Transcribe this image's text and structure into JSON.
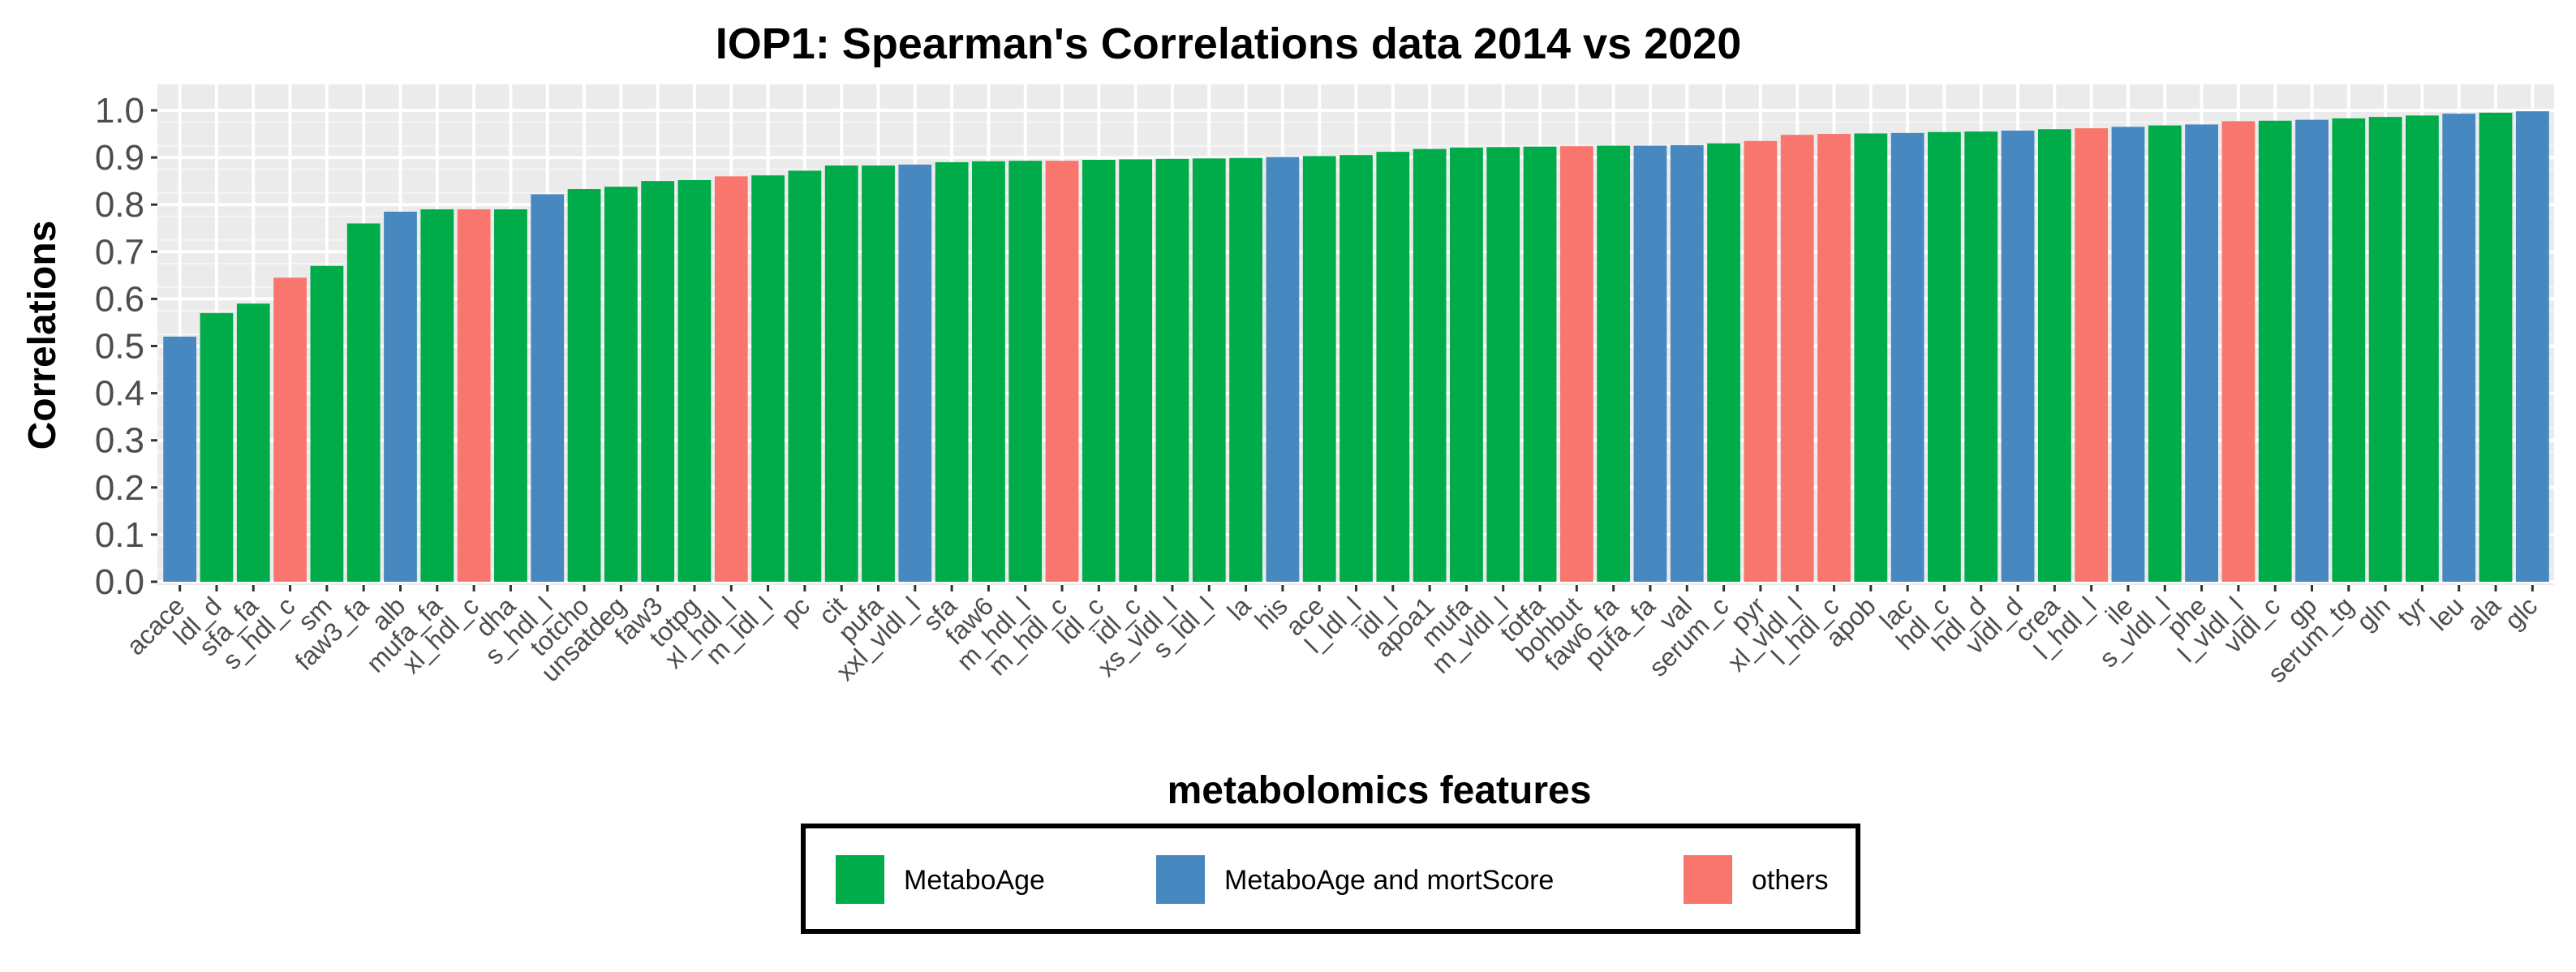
{
  "chart_data": {
    "type": "bar",
    "title": "IOP1: Spearman's Correlations data 2014 vs 2020",
    "xlabel": "metabolomics features",
    "ylabel": "Correlations",
    "ylim": [
      0,
      1.0
    ],
    "yticks": [
      "0.0",
      "0.1",
      "0.2",
      "0.3",
      "0.4",
      "0.5",
      "0.6",
      "0.7",
      "0.8",
      "0.9",
      "1.0"
    ],
    "grid": true,
    "legend_position": "bottom",
    "series_colors": {
      "MetaboAge": "#00ab4a",
      "MetaboAge and mortScore": "#4688bf",
      "others": "#f8766d"
    },
    "legend": [
      {
        "label": "MetaboAge",
        "color": "#00ab4a"
      },
      {
        "label": "MetaboAge and mortScore",
        "color": "#4688bf"
      },
      {
        "label": "others",
        "color": "#f8766d"
      }
    ],
    "bars": [
      {
        "label": "acace",
        "value": 0.52,
        "group": "MetaboAge and mortScore"
      },
      {
        "label": "ldl_d",
        "value": 0.57,
        "group": "MetaboAge"
      },
      {
        "label": "sfa_fa",
        "value": 0.59,
        "group": "MetaboAge"
      },
      {
        "label": "s_hdl_c",
        "value": 0.645,
        "group": "others"
      },
      {
        "label": "sm",
        "value": 0.67,
        "group": "MetaboAge"
      },
      {
        "label": "faw3_fa",
        "value": 0.76,
        "group": "MetaboAge"
      },
      {
        "label": "alb",
        "value": 0.785,
        "group": "MetaboAge and mortScore"
      },
      {
        "label": "mufa_fa",
        "value": 0.79,
        "group": "MetaboAge"
      },
      {
        "label": "xl_hdl_c",
        "value": 0.79,
        "group": "others"
      },
      {
        "label": "dha",
        "value": 0.79,
        "group": "MetaboAge"
      },
      {
        "label": "s_hdl_l",
        "value": 0.822,
        "group": "MetaboAge and mortScore"
      },
      {
        "label": "totcho",
        "value": 0.833,
        "group": "MetaboAge"
      },
      {
        "label": "unsatdeg",
        "value": 0.838,
        "group": "MetaboAge"
      },
      {
        "label": "faw3",
        "value": 0.85,
        "group": "MetaboAge"
      },
      {
        "label": "totpg",
        "value": 0.852,
        "group": "MetaboAge"
      },
      {
        "label": "xl_hdl_l",
        "value": 0.86,
        "group": "others"
      },
      {
        "label": "m_ldl_l",
        "value": 0.862,
        "group": "MetaboAge"
      },
      {
        "label": "pc",
        "value": 0.872,
        "group": "MetaboAge"
      },
      {
        "label": "cit",
        "value": 0.883,
        "group": "MetaboAge"
      },
      {
        "label": "pufa",
        "value": 0.883,
        "group": "MetaboAge"
      },
      {
        "label": "xxl_vldl_l",
        "value": 0.885,
        "group": "MetaboAge and mortScore"
      },
      {
        "label": "sfa",
        "value": 0.89,
        "group": "MetaboAge"
      },
      {
        "label": "faw6",
        "value": 0.892,
        "group": "MetaboAge"
      },
      {
        "label": "m_hdl_l",
        "value": 0.893,
        "group": "MetaboAge"
      },
      {
        "label": "m_hdl_c",
        "value": 0.893,
        "group": "others"
      },
      {
        "label": "ldl_c",
        "value": 0.895,
        "group": "MetaboAge"
      },
      {
        "label": "idl_c",
        "value": 0.896,
        "group": "MetaboAge"
      },
      {
        "label": "xs_vldl_l",
        "value": 0.897,
        "group": "MetaboAge"
      },
      {
        "label": "s_ldl_l",
        "value": 0.898,
        "group": "MetaboAge"
      },
      {
        "label": "la",
        "value": 0.899,
        "group": "MetaboAge"
      },
      {
        "label": "his",
        "value": 0.901,
        "group": "MetaboAge and mortScore"
      },
      {
        "label": "ace",
        "value": 0.903,
        "group": "MetaboAge"
      },
      {
        "label": "l_ldl_l",
        "value": 0.905,
        "group": "MetaboAge"
      },
      {
        "label": "idl_l",
        "value": 0.912,
        "group": "MetaboAge"
      },
      {
        "label": "apoa1",
        "value": 0.918,
        "group": "MetaboAge"
      },
      {
        "label": "mufa",
        "value": 0.921,
        "group": "MetaboAge"
      },
      {
        "label": "m_vldl_l",
        "value": 0.922,
        "group": "MetaboAge"
      },
      {
        "label": "totfa",
        "value": 0.923,
        "group": "MetaboAge"
      },
      {
        "label": "bohbut",
        "value": 0.924,
        "group": "others"
      },
      {
        "label": "faw6_fa",
        "value": 0.925,
        "group": "MetaboAge"
      },
      {
        "label": "pufa_fa",
        "value": 0.925,
        "group": "MetaboAge and mortScore"
      },
      {
        "label": "val",
        "value": 0.926,
        "group": "MetaboAge and mortScore"
      },
      {
        "label": "serum_c",
        "value": 0.93,
        "group": "MetaboAge"
      },
      {
        "label": "pyr",
        "value": 0.935,
        "group": "others"
      },
      {
        "label": "xl_vldl_l",
        "value": 0.948,
        "group": "others"
      },
      {
        "label": "l_hdl_c",
        "value": 0.95,
        "group": "others"
      },
      {
        "label": "apob",
        "value": 0.951,
        "group": "MetaboAge"
      },
      {
        "label": "lac",
        "value": 0.952,
        "group": "MetaboAge and mortScore"
      },
      {
        "label": "hdl_c",
        "value": 0.954,
        "group": "MetaboAge"
      },
      {
        "label": "hdl_d",
        "value": 0.955,
        "group": "MetaboAge"
      },
      {
        "label": "vldl_d",
        "value": 0.957,
        "group": "MetaboAge and mortScore"
      },
      {
        "label": "crea",
        "value": 0.96,
        "group": "MetaboAge"
      },
      {
        "label": "l_hdl_l",
        "value": 0.962,
        "group": "others"
      },
      {
        "label": "ile",
        "value": 0.965,
        "group": "MetaboAge and mortScore"
      },
      {
        "label": "s_vldl_l",
        "value": 0.968,
        "group": "MetaboAge"
      },
      {
        "label": "phe",
        "value": 0.97,
        "group": "MetaboAge and mortScore"
      },
      {
        "label": "l_vldl_l",
        "value": 0.977,
        "group": "others"
      },
      {
        "label": "vldl_c",
        "value": 0.978,
        "group": "MetaboAge"
      },
      {
        "label": "gp",
        "value": 0.98,
        "group": "MetaboAge and mortScore"
      },
      {
        "label": "serum_tg",
        "value": 0.983,
        "group": "MetaboAge"
      },
      {
        "label": "gln",
        "value": 0.986,
        "group": "MetaboAge"
      },
      {
        "label": "tyr",
        "value": 0.989,
        "group": "MetaboAge"
      },
      {
        "label": "leu",
        "value": 0.993,
        "group": "MetaboAge and mortScore"
      },
      {
        "label": "ala",
        "value": 0.995,
        "group": "MetaboAge"
      },
      {
        "label": "glc",
        "value": 0.998,
        "group": "MetaboAge and mortScore"
      }
    ]
  }
}
